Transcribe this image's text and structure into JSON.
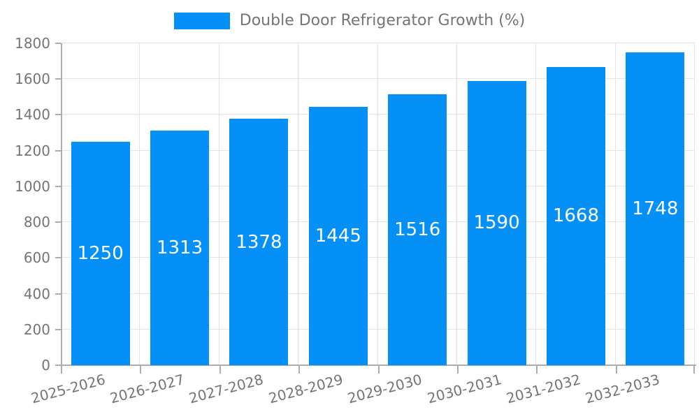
{
  "chart_data": {
    "type": "bar",
    "title": "",
    "legend": {
      "label": "Double Door Refrigerator Growth (%)",
      "position": "top"
    },
    "categories": [
      "2025-2026",
      "2026-2027",
      "2027-2028",
      "2028-2029",
      "2029-2030",
      "2030-2031",
      "2031-2032",
      "2032-2033"
    ],
    "series": [
      {
        "name": "Double Door Refrigerator Growth (%)",
        "values": [
          1250,
          1313,
          1378,
          1445,
          1516,
          1590,
          1668,
          1748
        ]
      }
    ],
    "value_labels": {
      "position": "inside-center",
      "color": "#ffffff"
    },
    "xlabel": "",
    "ylabel": "",
    "ylim": [
      0,
      1800
    ],
    "yticks": [
      0,
      200,
      400,
      600,
      800,
      1000,
      1200,
      1400,
      1600,
      1800
    ],
    "x_tick_rotation_deg": -15,
    "grid": true,
    "colors": {
      "bar": "#0590f8",
      "grid": "#e4e4e4",
      "axis": "#adadad",
      "tick_text": "#757575",
      "value_text": "#ffffff",
      "background": "#ffffff"
    }
  }
}
